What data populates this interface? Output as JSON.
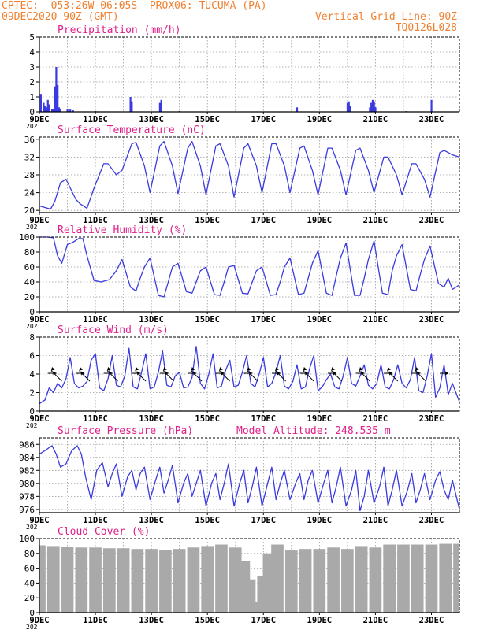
{
  "header": {
    "line1_left": "CPTEC:  053:26W-06:05S  PROX06: TUCUMA (PA)",
    "line2_left": "09DEC2020 90Z (GMT)",
    "line2_right": "Vertical Grid Line: 90Z",
    "line3_right": "TQ0126L028"
  },
  "colors": {
    "header": "#f08030",
    "title": "#e0208a",
    "series": "#3a3ae0",
    "cloud": "#a9a9a9",
    "axis": "#000000",
    "grid": "#9a9a9a"
  },
  "x_axis": {
    "start": "09DEC2020 00Z",
    "days": 15,
    "tick_labels": [
      {
        "day": 0,
        "label": "9DEC"
      },
      {
        "day": 2,
        "label": "11DEC"
      },
      {
        "day": 4,
        "label": "13DEC"
      },
      {
        "day": 6,
        "label": "15DEC"
      },
      {
        "day": 8,
        "label": "17DEC"
      },
      {
        "day": 10,
        "label": "19DEC"
      },
      {
        "day": 12,
        "label": "21DEC"
      },
      {
        "day": 14,
        "label": "23DEC"
      }
    ],
    "year_stub": "202"
  },
  "chart_data": [
    {
      "id": "precip",
      "type": "bar",
      "title": "Precipitation (mm/h)",
      "ylim": [
        0,
        5
      ],
      "yticks": [
        0,
        1,
        2,
        3,
        4,
        5
      ],
      "x_unit": "days since 09DEC2020 00Z",
      "x": [
        0.05,
        0.15,
        0.2,
        0.25,
        0.3,
        0.35,
        0.45,
        0.5,
        0.55,
        0.6,
        0.65,
        0.7,
        0.75,
        1.0,
        1.1,
        1.2,
        2.0,
        3.25,
        3.3,
        4.3,
        4.35,
        5.0,
        9.2,
        11.0,
        11.05,
        11.1,
        11.8,
        11.85,
        11.9,
        11.95,
        12.0,
        13.1,
        14.0
      ],
      "values": [
        1.2,
        0.6,
        0.4,
        0.3,
        0.8,
        0.5,
        0.2,
        0.2,
        1.7,
        3.0,
        1.8,
        0.3,
        0.2,
        0.2,
        0.15,
        0.1,
        0.05,
        1.0,
        0.7,
        0.6,
        0.8,
        0.05,
        0.3,
        0.6,
        0.7,
        0.4,
        0.3,
        0.6,
        0.8,
        0.7,
        0.3,
        0.05,
        0.8
      ]
    },
    {
      "id": "temp",
      "type": "line",
      "title": "Surface Temperature (nC)",
      "ylim": [
        19.5,
        36.5
      ],
      "yticks": [
        20,
        24,
        28,
        32,
        36
      ],
      "x_unit": "days since 09DEC2020 00Z",
      "x": [
        0,
        0.4,
        0.55,
        0.75,
        0.95,
        1.3,
        1.45,
        1.7,
        1.95,
        2.3,
        2.45,
        2.75,
        2.95,
        3.3,
        3.45,
        3.75,
        3.95,
        4.3,
        4.45,
        4.75,
        4.95,
        5.3,
        5.45,
        5.75,
        5.95,
        6.3,
        6.45,
        6.75,
        6.95,
        7.3,
        7.45,
        7.75,
        7.95,
        8.3,
        8.45,
        8.75,
        8.95,
        9.3,
        9.45,
        9.75,
        9.95,
        10.3,
        10.45,
        10.75,
        10.95,
        11.3,
        11.45,
        11.75,
        11.95,
        12.3,
        12.45,
        12.75,
        12.95,
        13.3,
        13.45,
        13.75,
        13.95,
        14.3,
        14.45,
        14.75,
        15.0
      ],
      "values": [
        21,
        20.3,
        22,
        26.2,
        27,
        22.5,
        21.5,
        20.5,
        25,
        30.5,
        30.5,
        28,
        29,
        35,
        35.3,
        30,
        24,
        34.5,
        35.5,
        30,
        23.8,
        34,
        35.5,
        30,
        23.5,
        34.5,
        35,
        30,
        23,
        34,
        35,
        30,
        24,
        35,
        35,
        30,
        24,
        34,
        34.5,
        29,
        23.5,
        34,
        34,
        29,
        23.5,
        33.5,
        34,
        29,
        24,
        32,
        32,
        28,
        23.5,
        30.5,
        30.5,
        27,
        23,
        33,
        33.5,
        32.5,
        32
      ]
    },
    {
      "id": "rh",
      "type": "line",
      "title": "Relative Humidity (%)",
      "ylim": [
        0,
        100
      ],
      "yticks": [
        0,
        20,
        40,
        60,
        80,
        100
      ],
      "x_unit": "days since 09DEC2020 00Z",
      "x": [
        0,
        0.3,
        0.5,
        0.65,
        0.8,
        1.0,
        1.2,
        1.4,
        1.55,
        1.7,
        1.95,
        2.2,
        2.5,
        2.75,
        2.95,
        3.25,
        3.45,
        3.6,
        3.75,
        3.95,
        4.25,
        4.45,
        4.6,
        4.75,
        4.95,
        5.25,
        5.45,
        5.6,
        5.75,
        5.95,
        6.25,
        6.45,
        6.6,
        6.75,
        6.95,
        7.25,
        7.45,
        7.6,
        7.75,
        7.95,
        8.25,
        8.45,
        8.6,
        8.75,
        8.95,
        9.25,
        9.45,
        9.6,
        9.75,
        9.95,
        10.25,
        10.45,
        10.6,
        10.75,
        10.95,
        11.25,
        11.45,
        11.6,
        11.75,
        11.95,
        12.25,
        12.45,
        12.6,
        12.75,
        12.95,
        13.25,
        13.45,
        13.6,
        13.75,
        13.95,
        14.25,
        14.45,
        14.6,
        14.75,
        15.0
      ],
      "values": [
        100,
        100,
        99,
        75,
        65,
        90,
        93,
        98,
        98,
        75,
        42,
        40,
        43,
        55,
        70,
        33,
        28,
        45,
        60,
        72,
        22,
        20,
        40,
        60,
        65,
        27,
        25,
        40,
        55,
        60,
        23,
        22,
        40,
        60,
        62,
        25,
        24,
        40,
        55,
        60,
        22,
        23,
        40,
        60,
        72,
        23,
        25,
        45,
        65,
        82,
        25,
        22,
        48,
        72,
        92,
        22,
        22,
        45,
        70,
        95,
        25,
        23,
        55,
        75,
        90,
        30,
        28,
        50,
        70,
        88,
        38,
        33,
        45,
        30,
        36
      ]
    },
    {
      "id": "wind",
      "type": "line",
      "title": "Surface Wind (m/s)",
      "ylim": [
        0,
        8
      ],
      "yticks": [
        0,
        2,
        4,
        6,
        8
      ],
      "x_unit": "days since 09DEC2020 00Z",
      "x": [
        0,
        0.2,
        0.35,
        0.5,
        0.65,
        0.8,
        0.95,
        1.1,
        1.25,
        1.4,
        1.55,
        1.7,
        1.85,
        2.0,
        2.15,
        2.3,
        2.45,
        2.6,
        2.75,
        2.9,
        3.05,
        3.2,
        3.35,
        3.5,
        3.65,
        3.8,
        3.95,
        4.1,
        4.25,
        4.4,
        4.55,
        4.7,
        4.85,
        5.0,
        5.15,
        5.3,
        5.45,
        5.6,
        5.75,
        5.9,
        6.05,
        6.2,
        6.35,
        6.5,
        6.65,
        6.8,
        6.95,
        7.1,
        7.25,
        7.4,
        7.55,
        7.7,
        7.85,
        8.0,
        8.15,
        8.3,
        8.45,
        8.6,
        8.75,
        8.9,
        9.05,
        9.2,
        9.35,
        9.5,
        9.65,
        9.8,
        9.95,
        10.1,
        10.25,
        10.4,
        10.55,
        10.7,
        10.85,
        11.0,
        11.15,
        11.3,
        11.45,
        11.6,
        11.75,
        11.9,
        12.05,
        12.2,
        12.35,
        12.5,
        12.65,
        12.8,
        12.95,
        13.1,
        13.25,
        13.4,
        13.55,
        13.7,
        13.85,
        14.0,
        14.15,
        14.3,
        14.45,
        14.6,
        14.75,
        15.0
      ],
      "values": [
        0.8,
        1.2,
        2.5,
        2.0,
        3.0,
        2.5,
        3.5,
        5.8,
        3.0,
        2.5,
        2.7,
        3.2,
        5.5,
        6.2,
        2.5,
        2.2,
        3.5,
        6.0,
        2.8,
        2.6,
        3.8,
        6.8,
        2.6,
        2.4,
        4.2,
        6.2,
        2.4,
        2.6,
        4.2,
        6.5,
        2.8,
        2.6,
        3.8,
        4.2,
        2.5,
        2.6,
        3.6,
        7.0,
        3.0,
        2.4,
        4.0,
        6.2,
        2.5,
        2.7,
        4.4,
        5.5,
        2.6,
        2.8,
        4.2,
        6.0,
        3.0,
        2.6,
        4.0,
        5.8,
        2.6,
        3.0,
        4.2,
        6.0,
        2.7,
        2.4,
        3.2,
        5.0,
        2.4,
        2.6,
        4.6,
        6.0,
        2.2,
        2.6,
        3.4,
        4.0,
        2.6,
        2.4,
        3.8,
        5.8,
        3.0,
        2.7,
        3.8,
        5.0,
        2.8,
        2.4,
        3.0,
        5.0,
        2.6,
        2.4,
        3.4,
        5.0,
        3.0,
        2.5,
        3.4,
        5.8,
        2.2,
        2.0,
        3.8,
        6.2,
        1.5,
        2.5,
        5.0,
        1.8,
        3.0,
        1.0
      ]
    },
    {
      "id": "pressure",
      "type": "line",
      "title": "Surface Pressure (hPa)",
      "annotation": "Model Altitude: 248.535 m",
      "ylim": [
        975.5,
        987
      ],
      "yticks": [
        976,
        978,
        980,
        982,
        984,
        986
      ],
      "x_unit": "days since 09DEC2020 00Z",
      "x": [
        0,
        0.25,
        0.45,
        0.6,
        0.75,
        0.95,
        1.15,
        1.35,
        1.5,
        1.65,
        1.85,
        2.05,
        2.25,
        2.45,
        2.6,
        2.75,
        2.95,
        3.15,
        3.3,
        3.45,
        3.6,
        3.75,
        3.95,
        4.15,
        4.3,
        4.45,
        4.6,
        4.75,
        4.95,
        5.15,
        5.3,
        5.45,
        5.6,
        5.75,
        5.95,
        6.15,
        6.3,
        6.45,
        6.6,
        6.75,
        6.95,
        7.15,
        7.3,
        7.45,
        7.6,
        7.75,
        7.95,
        8.15,
        8.3,
        8.45,
        8.6,
        8.75,
        8.95,
        9.15,
        9.3,
        9.45,
        9.6,
        9.75,
        9.95,
        10.15,
        10.3,
        10.45,
        10.6,
        10.75,
        10.95,
        11.15,
        11.3,
        11.45,
        11.6,
        11.75,
        11.95,
        12.15,
        12.3,
        12.45,
        12.6,
        12.75,
        12.95,
        13.15,
        13.3,
        13.45,
        13.6,
        13.75,
        13.95,
        14.15,
        14.3,
        14.45,
        14.6,
        14.75,
        15.0
      ],
      "values": [
        984.5,
        985.2,
        985.8,
        984.5,
        982.5,
        983.0,
        985.0,
        985.8,
        984.5,
        981.0,
        977.5,
        982.0,
        983.2,
        979.5,
        981.5,
        983.0,
        978.0,
        981.0,
        982.0,
        979.0,
        981.5,
        982.5,
        977.5,
        980.5,
        982.5,
        978.5,
        980.5,
        982.8,
        977.0,
        980.0,
        981.5,
        978.0,
        980.0,
        982.0,
        976.5,
        980.0,
        981.5,
        977.5,
        980.0,
        983.0,
        976.5,
        980.0,
        982.0,
        977.0,
        979.5,
        982.5,
        976.5,
        980.0,
        982.5,
        977.5,
        980.0,
        982.0,
        977.5,
        980.0,
        981.5,
        977.5,
        980.5,
        982.0,
        977.0,
        980.0,
        982.0,
        977.0,
        979.5,
        982.5,
        976.5,
        979.0,
        982.0,
        975.8,
        978.0,
        982.0,
        977.0,
        979.5,
        982.5,
        976.5,
        979.0,
        982.0,
        976.5,
        979.0,
        981.5,
        977.0,
        979.0,
        981.5,
        977.5,
        980.5,
        981.8,
        979.0,
        977.5,
        980.5,
        976.0
      ]
    },
    {
      "id": "cloud",
      "type": "area",
      "title": "Cloud Cover (%)",
      "ylim": [
        0,
        100
      ],
      "yticks": [
        0,
        20,
        40,
        60,
        80,
        100
      ],
      "x_unit": "days since 09DEC2020 00Z",
      "x": [
        0,
        0.5,
        1.0,
        1.5,
        2.0,
        2.5,
        3.0,
        3.5,
        4.0,
        4.5,
        5.0,
        5.5,
        6.0,
        6.5,
        7.0,
        7.3,
        7.5,
        7.7,
        7.85,
        8.0,
        8.2,
        8.5,
        9.0,
        9.5,
        10.0,
        10.5,
        11.0,
        11.5,
        12.0,
        12.5,
        13.0,
        13.5,
        14.0,
        14.5,
        15.0
      ],
      "values": [
        91,
        90,
        89,
        88,
        88,
        87,
        87,
        86,
        86,
        85,
        86,
        88,
        90,
        92,
        88,
        70,
        45,
        15,
        8,
        50,
        80,
        92,
        84,
        86,
        86,
        88,
        86,
        90,
        88,
        92,
        92,
        92,
        92,
        93,
        93
      ]
    }
  ]
}
